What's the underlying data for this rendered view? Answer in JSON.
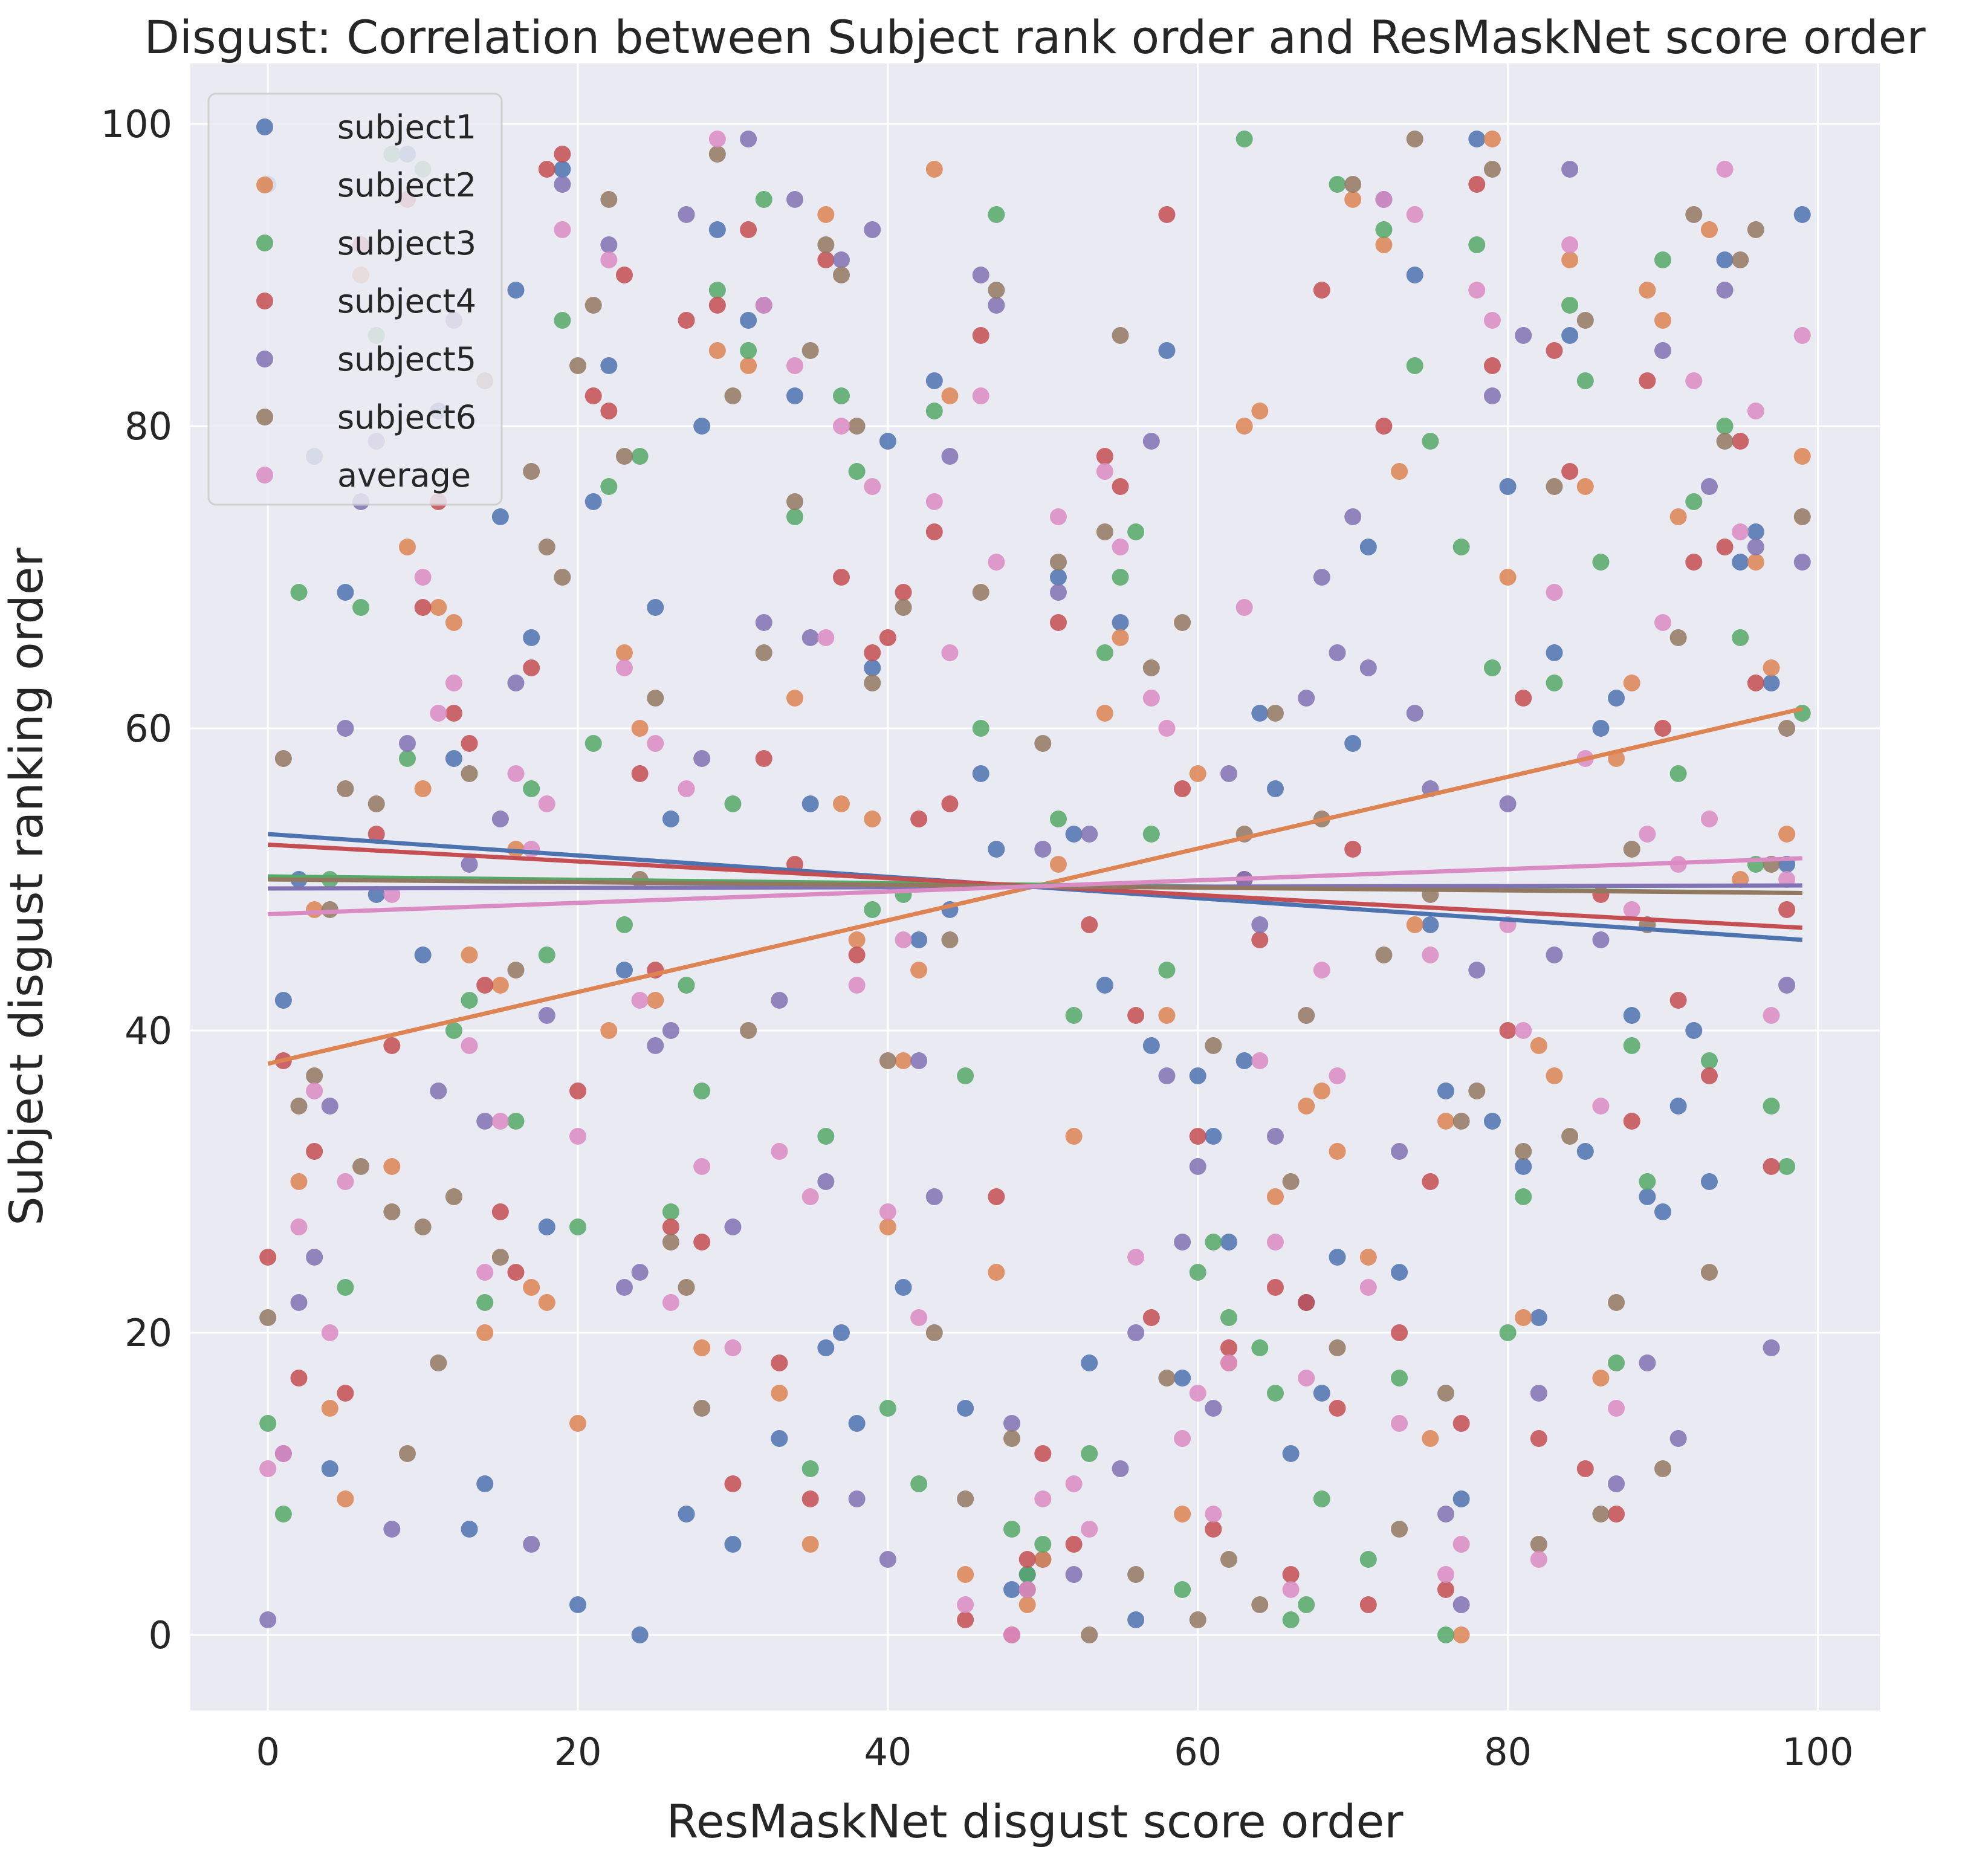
{
  "chart_data": {
    "type": "scatter",
    "title": "Disgust: Correlation between Subject rank order and ResMaskNet score order",
    "xlabel": "ResMaskNet disgust score order",
    "ylabel": "Subject disgust ranking order",
    "xlim": [
      -5,
      104
    ],
    "ylim": [
      -5,
      104
    ],
    "xticks": [
      0,
      20,
      40,
      60,
      80,
      100
    ],
    "yticks": [
      0,
      20,
      40,
      60,
      80,
      100
    ],
    "xtick_labels": [
      "0",
      "20",
      "40",
      "60",
      "80",
      "100"
    ],
    "ytick_labels": [
      "0",
      "20",
      "40",
      "60",
      "80",
      "100"
    ],
    "grid": true,
    "background": "#eaeaf2",
    "legend_position": "upper-left",
    "series": [
      {
        "name": "subject1",
        "color": "#4c72b0",
        "x": [
          0,
          1,
          2,
          3,
          4,
          5,
          7,
          9,
          10,
          11,
          12,
          13,
          14,
          15,
          16,
          17,
          18,
          19,
          20,
          21,
          22,
          23,
          24,
          25,
          26,
          27,
          28,
          29,
          30,
          31,
          32,
          33,
          34,
          35,
          36,
          37,
          38,
          39,
          40,
          41,
          42,
          43,
          44,
          45,
          46,
          47,
          48,
          49,
          50,
          51,
          52,
          53,
          54,
          55,
          56,
          57,
          58,
          59,
          60,
          61,
          62,
          63,
          64,
          65,
          66,
          67,
          68,
          69,
          70,
          71,
          72,
          73,
          74,
          75,
          76,
          77,
          78,
          79,
          80,
          81,
          82,
          83,
          84,
          85,
          86,
          87,
          88,
          89,
          90,
          91,
          92,
          93,
          94,
          95,
          96,
          97,
          98,
          99
        ],
        "y": [
          96,
          42,
          50,
          78,
          11,
          69,
          49,
          98,
          45,
          81,
          58,
          7,
          10,
          74,
          89,
          66,
          27,
          97,
          2,
          75,
          84,
          44,
          0,
          68,
          54,
          8,
          80,
          93,
          6,
          87,
          88,
          13,
          82,
          55,
          19,
          20,
          14,
          64,
          79,
          23,
          46,
          83,
          48,
          15,
          57,
          52,
          3,
          4,
          5,
          70,
          53,
          18,
          43,
          67,
          1,
          39,
          85,
          17,
          37,
          33,
          26,
          38,
          61,
          56,
          12,
          22,
          16,
          25,
          59,
          72,
          95,
          24,
          90,
          47,
          36,
          9,
          99,
          34,
          76,
          31,
          21,
          65,
          86,
          32,
          60,
          62,
          41,
          29,
          28,
          35,
          40,
          30,
          91,
          71,
          73,
          63,
          51,
          94
        ],
        "trend": [
          53.0,
          46.0
        ]
      },
      {
        "name": "subject2",
        "color": "#dd8452",
        "x": [
          1,
          2,
          3,
          4,
          5,
          6,
          8,
          9,
          10,
          11,
          12,
          13,
          14,
          15,
          16,
          17,
          18,
          20,
          22,
          23,
          24,
          25,
          28,
          29,
          31,
          33,
          34,
          35,
          36,
          37,
          38,
          39,
          40,
          41,
          42,
          43,
          44,
          45,
          47,
          49,
          50,
          51,
          52,
          54,
          55,
          58,
          59,
          60,
          62,
          63,
          64,
          65,
          67,
          68,
          69,
          70,
          71,
          72,
          73,
          74,
          75,
          76,
          77,
          79,
          80,
          81,
          82,
          83,
          84,
          85,
          86,
          87,
          88,
          89,
          90,
          91,
          93,
          95,
          96,
          97,
          98,
          99
        ],
        "y": [
          12,
          30,
          48,
          15,
          9,
          90,
          31,
          72,
          56,
          68,
          67,
          45,
          20,
          43,
          52,
          23,
          22,
          14,
          40,
          65,
          60,
          42,
          19,
          85,
          84,
          16,
          62,
          6,
          94,
          55,
          46,
          54,
          27,
          38,
          44,
          97,
          82,
          4,
          24,
          2,
          5,
          51,
          33,
          61,
          66,
          41,
          8,
          57,
          18,
          80,
          81,
          29,
          35,
          36,
          32,
          95,
          25,
          92,
          77,
          47,
          13,
          34,
          0,
          99,
          70,
          21,
          39,
          37,
          91,
          76,
          17,
          58,
          63,
          89,
          87,
          74,
          93,
          50,
          71,
          64,
          53,
          78
        ],
        "trend": [
          37.8,
          61.3
        ]
      },
      {
        "name": "subject3",
        "color": "#55a868",
        "x": [
          0,
          1,
          2,
          4,
          5,
          6,
          7,
          8,
          9,
          10,
          12,
          13,
          14,
          16,
          17,
          18,
          19,
          20,
          21,
          22,
          23,
          24,
          26,
          27,
          28,
          29,
          30,
          31,
          32,
          34,
          35,
          36,
          37,
          38,
          39,
          40,
          41,
          42,
          43,
          45,
          46,
          47,
          48,
          49,
          50,
          51,
          52,
          53,
          54,
          55,
          56,
          57,
          58,
          59,
          60,
          61,
          62,
          63,
          64,
          65,
          66,
          67,
          68,
          69,
          71,
          72,
          73,
          74,
          75,
          76,
          77,
          78,
          79,
          80,
          81,
          83,
          84,
          85,
          86,
          87,
          88,
          89,
          90,
          91,
          92,
          93,
          94,
          95,
          96,
          97,
          98,
          99
        ],
        "y": [
          14,
          8,
          69,
          50,
          23,
          68,
          86,
          98,
          58,
          97,
          40,
          42,
          22,
          34,
          56,
          45,
          87,
          27,
          59,
          76,
          47,
          78,
          28,
          43,
          36,
          89,
          55,
          85,
          95,
          74,
          11,
          33,
          82,
          77,
          48,
          15,
          49,
          10,
          81,
          37,
          60,
          94,
          7,
          4,
          6,
          54,
          41,
          12,
          65,
          70,
          73,
          53,
          44,
          3,
          24,
          26,
          21,
          99,
          19,
          16,
          1,
          2,
          9,
          96,
          5,
          93,
          17,
          84,
          79,
          0,
          72,
          92,
          64,
          20,
          29,
          63,
          88,
          83,
          71,
          18,
          39,
          30,
          91,
          57,
          75,
          38,
          80,
          66,
          51,
          35,
          31,
          61
        ],
        "trend": [
          50.2,
          49.1
        ]
      },
      {
        "name": "subject4",
        "color": "#c44e52",
        "x": [
          0,
          1,
          2,
          3,
          5,
          6,
          7,
          8,
          9,
          10,
          11,
          12,
          13,
          14,
          15,
          16,
          17,
          18,
          19,
          20,
          21,
          22,
          23,
          24,
          25,
          26,
          27,
          28,
          29,
          30,
          31,
          32,
          33,
          34,
          35,
          36,
          37,
          38,
          39,
          40,
          41,
          42,
          43,
          44,
          45,
          46,
          47,
          48,
          49,
          50,
          51,
          52,
          53,
          54,
          55,
          56,
          57,
          58,
          59,
          60,
          61,
          62,
          63,
          64,
          65,
          66,
          67,
          68,
          69,
          70,
          71,
          72,
          73,
          75,
          76,
          77,
          78,
          79,
          80,
          81,
          82,
          83,
          84,
          85,
          86,
          87,
          88,
          89,
          90,
          91,
          92,
          93,
          94,
          95,
          96,
          97,
          98
        ],
        "y": [
          25,
          38,
          17,
          32,
          16,
          92,
          53,
          39,
          95,
          68,
          75,
          61,
          59,
          43,
          28,
          24,
          64,
          97,
          98,
          36,
          82,
          81,
          90,
          57,
          44,
          27,
          87,
          26,
          88,
          10,
          93,
          58,
          18,
          51,
          9,
          91,
          70,
          45,
          65,
          66,
          69,
          54,
          73,
          55,
          1,
          86,
          29,
          0,
          5,
          12,
          67,
          6,
          47,
          78,
          76,
          41,
          21,
          94,
          56,
          33,
          7,
          19,
          50,
          46,
          23,
          4,
          22,
          89,
          15,
          52,
          2,
          80,
          20,
          30,
          3,
          14,
          96,
          84,
          40,
          62,
          13,
          85,
          77,
          11,
          49,
          8,
          34,
          83,
          60,
          42,
          71,
          37,
          72,
          79,
          63,
          31,
          48
        ],
        "trend": [
          52.3,
          46.8
        ]
      },
      {
        "name": "subject5",
        "color": "#8172b3",
        "x": [
          0,
          1,
          2,
          3,
          4,
          5,
          6,
          7,
          8,
          9,
          11,
          12,
          13,
          14,
          15,
          16,
          17,
          18,
          19,
          22,
          23,
          24,
          25,
          26,
          27,
          28,
          30,
          31,
          32,
          33,
          34,
          35,
          36,
          37,
          38,
          39,
          40,
          42,
          43,
          44,
          46,
          47,
          48,
          49,
          50,
          51,
          52,
          53,
          55,
          56,
          57,
          58,
          59,
          60,
          61,
          62,
          63,
          64,
          65,
          67,
          68,
          69,
          70,
          71,
          73,
          74,
          75,
          76,
          77,
          78,
          79,
          80,
          81,
          82,
          83,
          84,
          86,
          87,
          89,
          90,
          91,
          93,
          94,
          96,
          97,
          98,
          99
        ],
        "y": [
          1,
          12,
          22,
          25,
          35,
          60,
          75,
          79,
          7,
          59,
          36,
          87,
          51,
          34,
          54,
          63,
          6,
          41,
          96,
          92,
          23,
          24,
          39,
          40,
          94,
          58,
          27,
          99,
          67,
          42,
          95,
          66,
          30,
          91,
          9,
          93,
          5,
          38,
          29,
          78,
          90,
          88,
          14,
          3,
          52,
          69,
          4,
          53,
          11,
          20,
          79,
          37,
          26,
          31,
          15,
          57,
          50,
          47,
          33,
          62,
          70,
          65,
          74,
          64,
          32,
          61,
          56,
          8,
          2,
          44,
          82,
          55,
          86,
          16,
          45,
          97,
          46,
          10,
          18,
          85,
          13,
          76,
          89,
          72,
          19,
          43,
          71
        ],
        "trend": [
          49.4,
          49.6
        ]
      },
      {
        "name": "subject6",
        "color": "#937860",
        "x": [
          0,
          1,
          2,
          3,
          4,
          5,
          6,
          7,
          8,
          9,
          10,
          11,
          12,
          13,
          14,
          15,
          16,
          17,
          18,
          19,
          20,
          21,
          22,
          23,
          24,
          25,
          26,
          27,
          28,
          29,
          30,
          31,
          32,
          34,
          35,
          36,
          37,
          38,
          39,
          40,
          41,
          43,
          44,
          45,
          46,
          47,
          48,
          49,
          50,
          51,
          53,
          54,
          55,
          56,
          57,
          58,
          59,
          60,
          61,
          62,
          63,
          64,
          65,
          66,
          67,
          68,
          69,
          70,
          72,
          73,
          74,
          75,
          76,
          77,
          78,
          79,
          81,
          82,
          83,
          84,
          85,
          86,
          87,
          88,
          89,
          90,
          91,
          92,
          93,
          94,
          95,
          96,
          97,
          98,
          99
        ],
        "y": [
          21,
          58,
          35,
          37,
          48,
          56,
          31,
          55,
          28,
          12,
          27,
          18,
          29,
          57,
          83,
          25,
          44,
          77,
          72,
          70,
          84,
          88,
          95,
          78,
          50,
          62,
          26,
          23,
          15,
          98,
          82,
          40,
          65,
          75,
          85,
          92,
          90,
          80,
          63,
          38,
          68,
          20,
          46,
          9,
          69,
          89,
          13,
          3,
          59,
          71,
          0,
          73,
          86,
          4,
          64,
          17,
          67,
          1,
          39,
          5,
          53,
          2,
          61,
          30,
          41,
          54,
          19,
          96,
          45,
          7,
          99,
          49,
          16,
          34,
          36,
          97,
          32,
          6,
          76,
          33,
          87,
          8,
          22,
          52,
          47,
          11,
          66,
          94,
          24,
          79,
          91,
          93,
          51,
          60,
          74
        ],
        "trend": [
          50.0,
          49.1
        ]
      },
      {
        "name": "average",
        "color": "#da8bc3",
        "x": [
          0,
          1,
          2,
          3,
          4,
          5,
          8,
          10,
          11,
          12,
          13,
          14,
          15,
          16,
          17,
          18,
          19,
          20,
          22,
          23,
          24,
          25,
          26,
          27,
          28,
          29,
          30,
          32,
          33,
          34,
          35,
          36,
          37,
          38,
          39,
          40,
          41,
          42,
          43,
          44,
          45,
          46,
          47,
          48,
          49,
          50,
          51,
          52,
          53,
          54,
          55,
          56,
          57,
          58,
          59,
          60,
          61,
          62,
          63,
          64,
          65,
          66,
          67,
          68,
          69,
          71,
          72,
          73,
          74,
          75,
          76,
          77,
          78,
          79,
          80,
          81,
          82,
          83,
          84,
          85,
          86,
          87,
          88,
          89,
          90,
          91,
          92,
          93,
          94,
          95,
          96,
          97,
          98,
          99
        ],
        "y": [
          11,
          12,
          27,
          36,
          20,
          30,
          49,
          70,
          61,
          63,
          39,
          24,
          34,
          57,
          52,
          55,
          93,
          33,
          91,
          64,
          42,
          59,
          22,
          56,
          31,
          99,
          19,
          88,
          32,
          84,
          29,
          66,
          80,
          43,
          76,
          28,
          46,
          21,
          75,
          65,
          2,
          82,
          71,
          0,
          3,
          9,
          74,
          10,
          7,
          77,
          72,
          25,
          62,
          60,
          13,
          16,
          8,
          18,
          68,
          38,
          26,
          3,
          17,
          44,
          37,
          23,
          95,
          14,
          94,
          45,
          4,
          6,
          89,
          87,
          47,
          40,
          5,
          69,
          92,
          58,
          35,
          15,
          48,
          53,
          67,
          51,
          83,
          54,
          97,
          73,
          81,
          41,
          50,
          86
        ],
        "trend": [
          47.7,
          51.4
        ]
      }
    ]
  }
}
